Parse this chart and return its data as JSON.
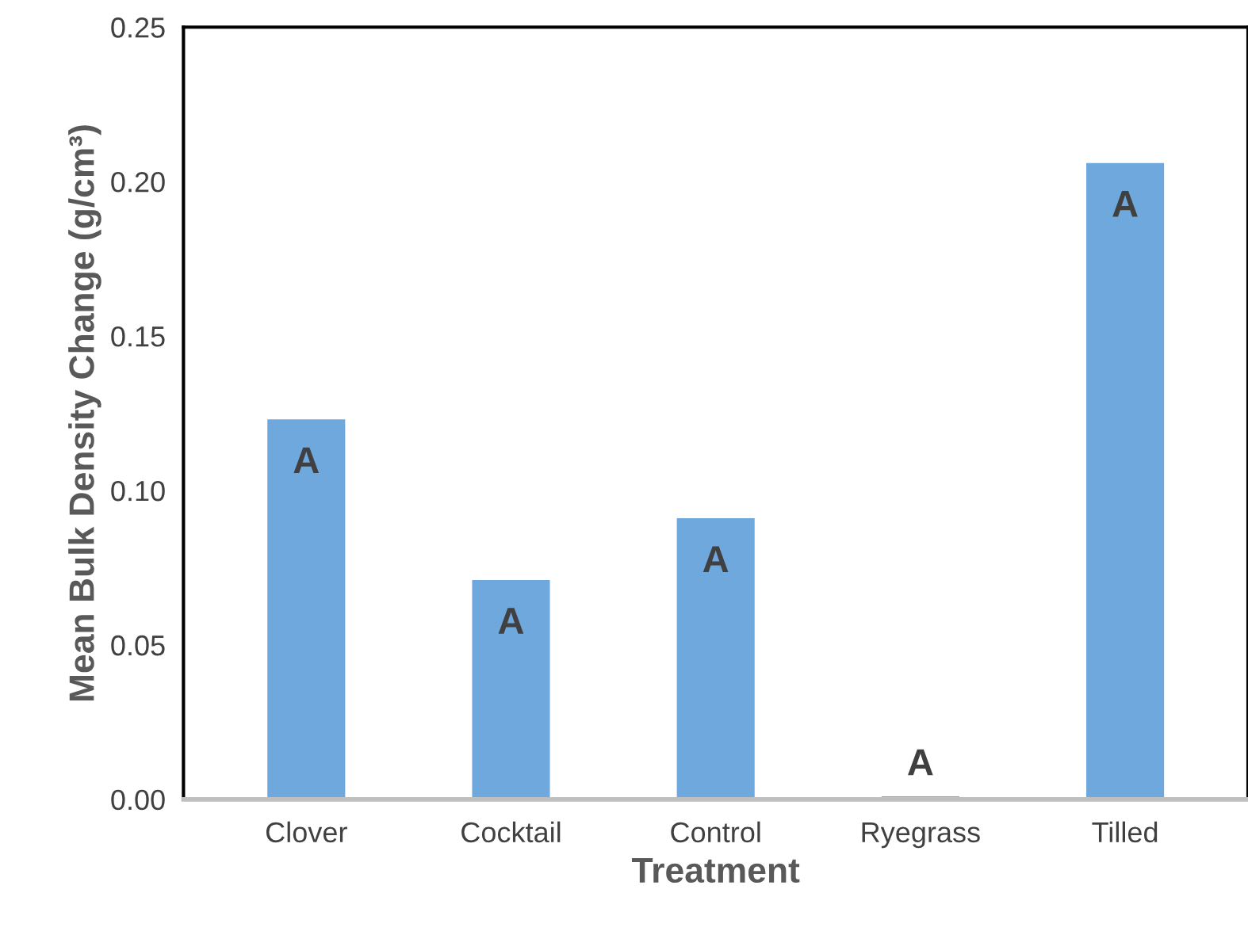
{
  "chart_data": {
    "type": "bar",
    "xlabel": "Treatment",
    "ylabel": "Mean Bulk Density Change (g/cm³)",
    "categories": [
      "Clover",
      "Cocktail",
      "Control",
      "Ryegrass",
      "Tilled"
    ],
    "values": [
      0.123,
      0.071,
      0.091,
      0.001,
      0.206
    ],
    "color": "#6fa8dc",
    "ylim": [
      0,
      0.25
    ],
    "yticks": [
      {
        "value": 0,
        "label": "0.00"
      },
      {
        "value": 0.05,
        "label": "0.05"
      },
      {
        "value": 0.1,
        "label": "0.10"
      },
      {
        "value": 0.15,
        "label": "0.15"
      },
      {
        "value": 0.2,
        "label": "0.20"
      },
      {
        "value": 0.25,
        "label": "0.25"
      }
    ],
    "grid": false,
    "value_labels": [
      "A",
      "A",
      "A",
      "A",
      "A"
    ]
  }
}
